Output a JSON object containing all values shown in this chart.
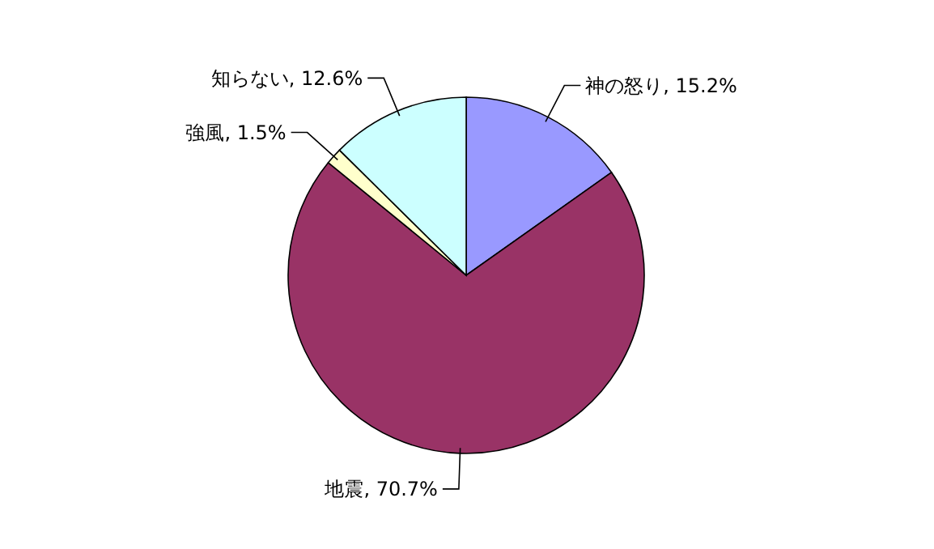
{
  "chart_data": {
    "type": "pie",
    "categories": [
      "神の怒り",
      "地震",
      "強風",
      "知らない"
    ],
    "values": [
      15.2,
      70.7,
      1.5,
      12.6
    ],
    "colors": [
      "#9999ff",
      "#993366",
      "#ffffcc",
      "#ccffff"
    ],
    "value_labels": [
      "15.2%",
      "70.7%",
      "1.5%",
      "12.6%"
    ]
  }
}
